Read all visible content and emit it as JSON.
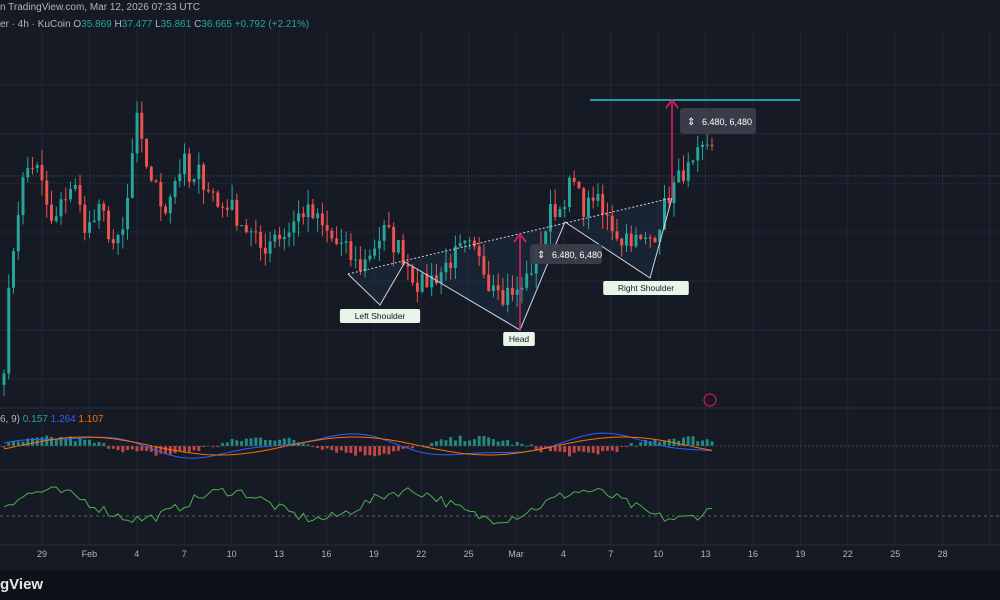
{
  "header": {
    "source_line": "n TradingView.com, Mar 12, 2026 07:33 UTC"
  },
  "ohlc": {
    "prefix": "er · 4h · KuCoin",
    "open_label": "O",
    "open": "35.869",
    "high_label": "H",
    "high": "37.477",
    "low_label": "L",
    "low": "35.861",
    "close_label": "C",
    "close": "36.665",
    "change": "+0.792 (+2.21%)"
  },
  "macd_legend": {
    "params": "6, 9)",
    "hist": "0.157",
    "macd": "1.264",
    "signal": "1.107"
  },
  "annotations": {
    "left_shoulder": "Left Shoulder",
    "head": "Head",
    "right_shoulder": "Right Shoulder",
    "measure_1": "6.480, 6,480",
    "measure_2": "6.480, 6,480"
  },
  "brand": "gView",
  "colors": {
    "background": "#161a25",
    "up": "#26a69a",
    "down": "#ef5350",
    "neckline_target": "#26c6da",
    "measure_arrow": "#e91e63",
    "rsi": "#4caf50",
    "macd_line": "#2962ff",
    "signal_line": "#ff6d00"
  },
  "chart_data": {
    "type": "candlestick",
    "timeframe": "4h",
    "x_ticks": [
      "29",
      "Feb",
      "4",
      "7",
      "10",
      "13",
      "16",
      "19",
      "22",
      "25",
      "Mar",
      "4",
      "7",
      "10",
      "13",
      "16",
      "19",
      "22",
      "25",
      "28"
    ],
    "close_path": [
      23,
      28,
      31,
      33,
      33.5,
      33,
      31.5,
      30,
      31,
      32,
      32.5,
      31,
      30,
      30.5,
      31,
      30,
      29,
      29.5,
      32,
      36,
      34,
      33,
      32,
      31,
      32,
      33,
      33.5,
      32,
      33,
      32.5,
      32,
      31,
      31.5,
      31,
      30.5,
      30,
      29.5,
      29,
      29.2,
      30,
      29.5,
      30,
      30.5,
      31,
      30.8,
      30.5,
      30,
      29.6,
      29.2,
      29,
      28.5,
      28,
      28.3,
      29,
      29.5,
      30,
      29.3,
      29,
      28.3,
      27.5,
      27,
      27.3,
      27.5,
      27.8,
      28.3,
      28.6,
      28.9,
      29,
      28.5,
      28,
      27.2,
      27.5,
      26.5,
      27,
      26.5,
      27.2,
      28,
      29,
      30,
      31.2,
      31,
      32,
      32.5,
      31.5,
      31,
      32,
      30.8,
      30.5,
      30,
      29.5,
      29.8,
      29.4,
      29.2,
      29.5,
      30,
      31,
      32,
      32.5,
      33.2,
      33,
      33.8,
      34,
      34.5
    ],
    "patterns": [
      {
        "name": "Left Shoulder"
      },
      {
        "name": "Head"
      },
      {
        "name": "Right Shoulder"
      }
    ]
  }
}
